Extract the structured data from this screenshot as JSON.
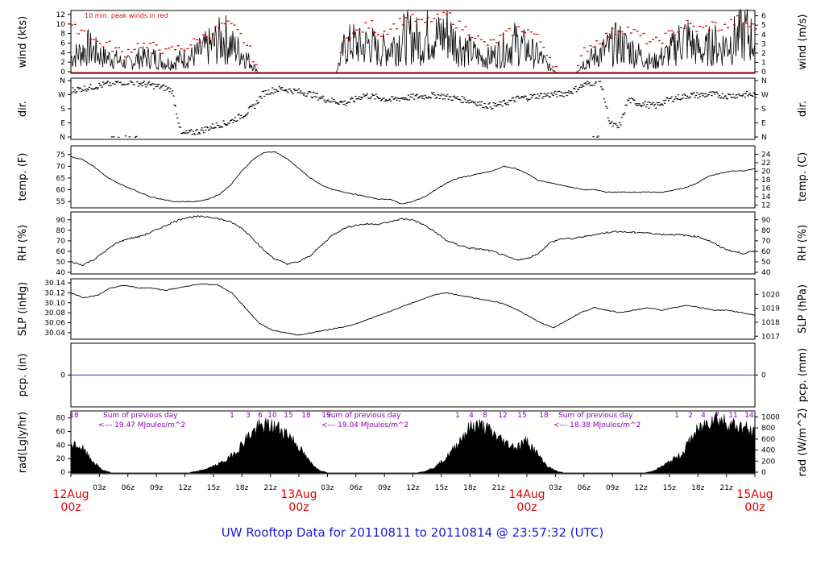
{
  "title": "UW Rooftop Data for 20110811  to  20110814 @ 23:57:32  (UTC)",
  "wind_note": "10 min. peak winds in red",
  "colors": {
    "peak": "#e00000",
    "label_magenta": "#8b00b8",
    "precip_line": "#2b2bd8",
    "title": "#1a1adb",
    "date_red": "#e00000"
  },
  "time_axis": {
    "hour_ticks": [
      "03z",
      "06z",
      "09z",
      "12z",
      "15z",
      "18z",
      "21z",
      "03z",
      "06z",
      "09z",
      "12z",
      "15z",
      "18z",
      "21z",
      "03z",
      "06z",
      "09z",
      "12z",
      "15z",
      "18z",
      "21z"
    ],
    "day_labels": [
      {
        "date": "12Aug",
        "hour": "00z"
      },
      {
        "date": "13Aug",
        "hour": "00z"
      },
      {
        "date": "14Aug",
        "hour": "00z"
      },
      {
        "date": "15Aug",
        "hour": "00z"
      }
    ]
  },
  "chart_data": [
    {
      "type": "line",
      "name": "wind",
      "ylabel_left": "wind (kts)",
      "ylabel_right": "wind (m/s)",
      "left_ticks": [
        "0",
        "2",
        "4",
        "6",
        "8",
        "10",
        "12"
      ],
      "ylim_left": [
        0,
        12.5
      ],
      "right_ticks": [
        "0",
        "1",
        "2",
        "3",
        "4",
        "5",
        "6"
      ],
      "ylim_right": [
        0,
        6.4
      ],
      "x_range_hours": [
        0,
        72
      ],
      "series": [
        {
          "values_kts": [
            3,
            4,
            5,
            4,
            3,
            3,
            2,
            2,
            3,
            3,
            3,
            2,
            2,
            3,
            3,
            4,
            5,
            6,
            7,
            5,
            4,
            2,
            0,
            0,
            0,
            0,
            0,
            0,
            0,
            0,
            0,
            0,
            5,
            6,
            5,
            6,
            4,
            5,
            6,
            7,
            7,
            6,
            8,
            7,
            8,
            6,
            5,
            4,
            3,
            3,
            4,
            5,
            6,
            5,
            4,
            3,
            1,
            0,
            0,
            0,
            2,
            3,
            4,
            5,
            6,
            5,
            4,
            3,
            2,
            3,
            4,
            6,
            7,
            5,
            4,
            6,
            5,
            6,
            7,
            8,
            6
          ]
        },
        {
          "peak_kts": [
            9,
            9,
            8,
            6,
            6,
            5,
            4,
            5,
            6,
            5,
            6,
            4,
            5,
            5,
            6,
            7,
            8,
            9,
            10,
            9,
            7,
            4,
            0,
            0,
            0,
            0,
            0,
            0,
            0,
            0,
            0,
            0,
            8,
            8,
            9,
            10,
            8,
            9,
            10,
            11,
            11,
            10,
            11,
            11,
            12,
            10,
            9,
            8,
            6,
            6,
            7,
            8,
            9,
            9,
            8,
            6,
            3,
            0,
            0,
            0,
            5,
            6,
            7,
            8,
            9,
            9,
            8,
            7,
            6,
            7,
            8,
            9,
            10,
            9,
            9,
            10,
            9,
            10,
            11,
            10,
            9
          ]
        }
      ]
    },
    {
      "type": "scatter",
      "name": "direction",
      "ylabel_left": "dir.",
      "ylabel_right": "dir.",
      "left_ticks": [
        "N",
        "E",
        "S",
        "W",
        "N"
      ],
      "right_ticks": [
        "N",
        "E",
        "S",
        "W",
        "N"
      ],
      "ylim_deg": [
        0,
        360
      ],
      "series": [
        {
          "values_deg": [
            300,
            310,
            320,
            330,
            340,
            350,
            355,
            350,
            340,
            330,
            320,
            300,
            20,
            30,
            40,
            60,
            80,
            90,
            120,
            150,
            200,
            280,
            300,
            310,
            300,
            290,
            280,
            260,
            240,
            230,
            220,
            240,
            270,
            260,
            250,
            240,
            250,
            255,
            260,
            265,
            270,
            260,
            250,
            240,
            230,
            210,
            200,
            210,
            230,
            250,
            255,
            265,
            270,
            275,
            280,
            300,
            330,
            350,
            355,
            90,
            60,
            240,
            220,
            210,
            200,
            230,
            250,
            260,
            270,
            270,
            275,
            270,
            265,
            270,
            275,
            270
          ]
        }
      ]
    },
    {
      "type": "line",
      "name": "temperature",
      "ylabel_left": "temp. (F)",
      "ylabel_right": "temp. (C)",
      "left_ticks": [
        "55",
        "60",
        "65",
        "70",
        "75"
      ],
      "ylim_left": [
        53,
        78
      ],
      "right_ticks": [
        "12",
        "14",
        "16",
        "18",
        "20",
        "22",
        "24"
      ],
      "ylim_right": [
        11.7,
        25.6
      ],
      "series": [
        {
          "values": [
            74,
            73,
            70,
            66,
            63,
            61,
            59,
            57,
            56,
            55,
            55,
            55,
            56,
            58,
            62,
            68,
            73,
            76,
            76,
            73,
            69,
            65,
            62,
            60,
            59,
            58,
            57,
            56,
            56,
            54,
            55,
            57,
            60,
            63,
            65,
            66,
            67,
            68,
            70,
            69,
            67,
            64,
            63,
            62,
            61,
            60,
            60,
            59,
            59,
            59,
            59,
            59,
            59,
            60,
            61,
            63,
            66,
            67,
            68,
            68,
            69
          ]
        }
      ]
    },
    {
      "type": "line",
      "name": "relative humidity",
      "ylabel_left": "RH (%)",
      "ylabel_right": "RH (%)",
      "left_ticks": [
        "40",
        "50",
        "60",
        "70",
        "80",
        "90"
      ],
      "ylim_left": [
        40,
        96
      ],
      "right_ticks": [
        "40",
        "50",
        "60",
        "70",
        "80",
        "90"
      ],
      "series": [
        {
          "values": [
            50,
            47,
            52,
            60,
            68,
            72,
            74,
            78,
            83,
            88,
            92,
            93,
            93,
            91,
            88,
            82,
            72,
            60,
            52,
            48,
            50,
            56,
            66,
            76,
            82,
            85,
            86,
            86,
            88,
            91,
            90,
            85,
            78,
            70,
            66,
            63,
            62,
            60,
            56,
            52,
            53,
            58,
            68,
            72,
            72,
            74,
            76,
            78,
            79,
            78,
            78,
            77,
            76,
            76,
            75,
            74,
            70,
            64,
            60,
            58,
            60
          ]
        }
      ]
    },
    {
      "type": "line",
      "name": "sea level pressure",
      "ylabel_left": "SLP (inHg)",
      "ylabel_right": "SLP (hPa)",
      "left_ticks": [
        "30.04",
        "30.06",
        "30.08",
        "30.10",
        "30.12",
        "30.14"
      ],
      "ylim_left": [
        30.03,
        30.145
      ],
      "right_ticks": [
        "1017",
        "1018",
        "1019",
        "1020"
      ],
      "ylim_right": [
        1016.9,
        1021.0
      ],
      "series": [
        {
          "values": [
            30.12,
            30.11,
            30.115,
            30.13,
            30.135,
            30.13,
            30.13,
            30.125,
            30.13,
            30.135,
            30.138,
            30.135,
            30.12,
            30.09,
            30.06,
            30.045,
            30.04,
            30.035,
            30.04,
            30.045,
            30.05,
            30.055,
            30.065,
            30.075,
            30.085,
            30.095,
            30.105,
            30.115,
            30.12,
            30.115,
            30.11,
            30.105,
            30.1,
            30.09,
            30.075,
            30.06,
            30.05,
            30.065,
            30.08,
            30.09,
            30.085,
            30.08,
            30.085,
            30.09,
            30.085,
            30.09,
            30.095,
            30.09,
            30.085,
            30.085,
            30.08,
            30.075
          ]
        }
      ]
    },
    {
      "type": "line",
      "name": "precipitation",
      "ylabel_left": "pcp. (in)",
      "ylabel_right": "pcp. (mm)",
      "left_ticks": [
        "0"
      ],
      "right_ticks": [
        "0"
      ],
      "series": [
        {
          "values": [
            0,
            0
          ]
        }
      ]
    },
    {
      "type": "area",
      "name": "solar radiation",
      "ylabel_left": "rad(Lgly/hr)",
      "ylabel_right": "rad (W/m^2)",
      "left_ticks": [
        "0",
        "20",
        "40",
        "60",
        "80"
      ],
      "ylim_left": [
        0,
        88
      ],
      "right_ticks": [
        "0",
        "200",
        "400",
        "600",
        "800",
        "1000"
      ],
      "daily_sums": [
        {
          "label": "Sum of previous day",
          "value": "<--- 19.47 MJoules/m^2"
        },
        {
          "label": "Sum of previous day",
          "value": "<--- 19.04 MJoules/m^2"
        },
        {
          "label": "Sum of previous day",
          "value": "<--- 18.38 MJoules/m^2"
        }
      ],
      "hour_markers": [
        "18",
        "1",
        "3",
        "6",
        "10",
        "15",
        "18",
        "19",
        "1",
        "4",
        "8",
        "12",
        "15",
        "18",
        "1",
        "2",
        "4",
        "7",
        "11",
        "14"
      ],
      "series": [
        {
          "values": [
            44,
            40,
            20,
            5,
            0,
            0,
            0,
            0,
            0,
            0,
            0,
            0,
            2,
            6,
            12,
            20,
            34,
            55,
            70,
            73,
            70,
            60,
            40,
            18,
            4,
            0,
            0,
            0,
            0,
            0,
            0,
            0,
            0,
            0,
            2,
            8,
            20,
            38,
            62,
            75,
            70,
            58,
            46,
            40,
            50,
            30,
            10,
            2,
            0,
            0,
            0,
            0,
            0,
            0,
            0,
            0,
            2,
            10,
            20,
            30,
            58,
            72,
            88,
            80,
            74,
            70,
            60
          ]
        }
      ]
    }
  ]
}
